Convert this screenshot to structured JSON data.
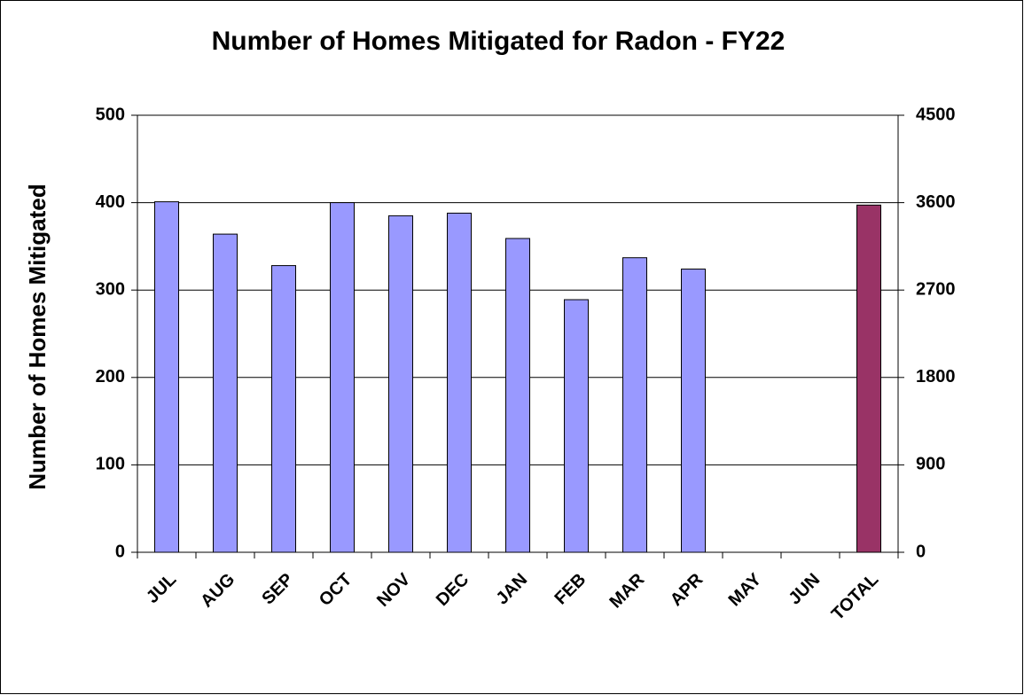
{
  "chart_data": {
    "type": "bar",
    "title": "Number of Homes Mitigated for Radon - FY22",
    "y_label": "Number of Homes Mitigated",
    "categories": [
      "JUL",
      "AUG",
      "SEP",
      "OCT",
      "NOV",
      "DEC",
      "JAN",
      "FEB",
      "MAR",
      "APR",
      "MAY",
      "JUN",
      "TOTAL"
    ],
    "series": [
      {
        "color": "#9999ff",
        "values": [
          401,
          364,
          328,
          400,
          385,
          388,
          359,
          289,
          337,
          324,
          null,
          null,
          null
        ]
      },
      {
        "color": "#993366",
        "axis": "y2",
        "values": [
          null,
          null,
          null,
          null,
          null,
          null,
          null,
          null,
          null,
          null,
          null,
          null,
          3575
        ]
      }
    ],
    "ylim": [
      0,
      500
    ],
    "yticks": [
      0,
      100,
      200,
      300,
      400,
      500
    ],
    "y2lim": [
      0,
      4500
    ],
    "y2ticks": [
      0,
      900,
      1800,
      2700,
      3600,
      4500
    ],
    "grid": true
  }
}
